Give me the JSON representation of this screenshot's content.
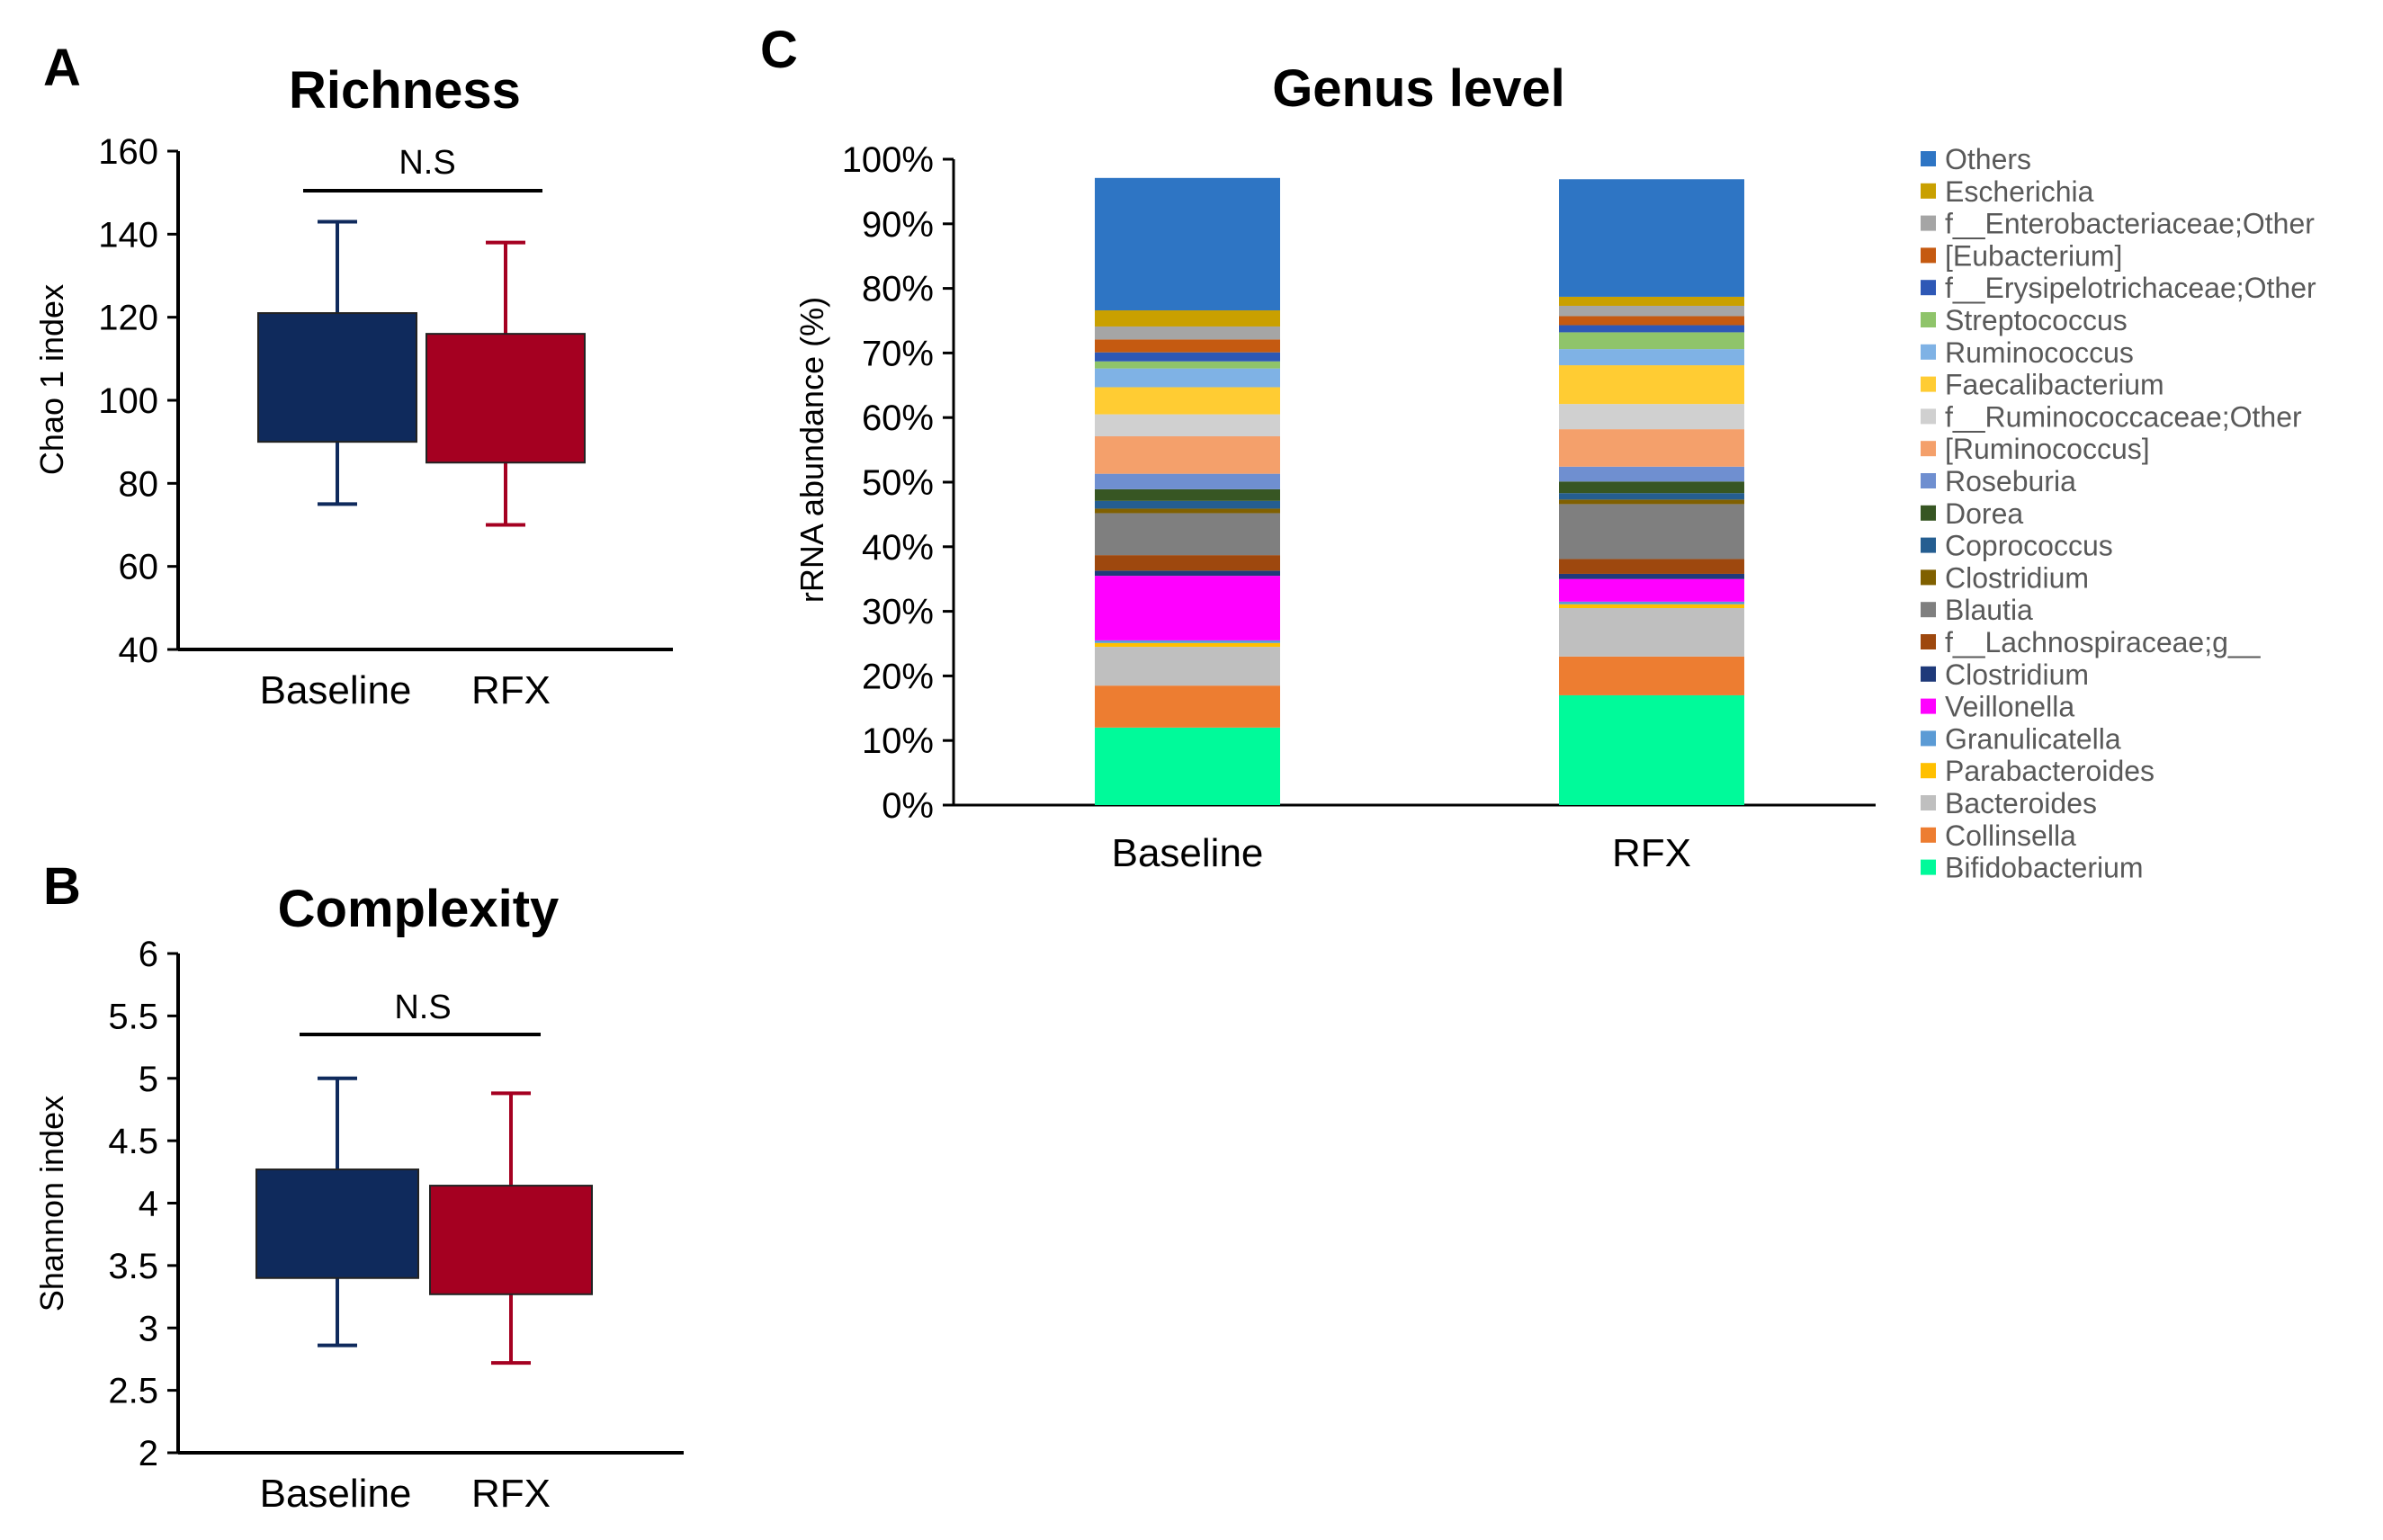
{
  "panels": {
    "A": {
      "letter": "A",
      "title": "Richness",
      "ylabel": "Chao 1 index",
      "significance": "N.S",
      "color": "#0f2a5c"
    },
    "B": {
      "letter": "B",
      "title": "Complexity",
      "ylabel": "Shannon index",
      "significance": "N.S"
    },
    "C": {
      "letter": "C",
      "title": "Genus level",
      "ylabel": "rRNA abundance (%)"
    }
  },
  "chart_data": [
    {
      "panel": "A",
      "type": "bar",
      "title": "Richness",
      "xlabel": "",
      "ylabel": "Chao 1 index",
      "categories": [
        "Baseline",
        "RFX"
      ],
      "box_bottom": [
        90,
        85
      ],
      "box_top": [
        121,
        116
      ],
      "whisker_low": [
        75,
        70
      ],
      "whisker_high": [
        143,
        138
      ],
      "colors": [
        "#0f2a5c",
        "#a50021"
      ],
      "ylim": [
        40,
        160
      ],
      "yticks": [
        40,
        60,
        80,
        100,
        120,
        140,
        160
      ],
      "annotation": "N.S",
      "grid": false
    },
    {
      "panel": "B",
      "type": "bar",
      "title": "Complexity",
      "xlabel": "",
      "ylabel": "Shannon index",
      "categories": [
        "Baseline",
        "RFX"
      ],
      "box_bottom": [
        3.4,
        3.27
      ],
      "box_top": [
        4.27,
        4.14
      ],
      "whisker_low": [
        2.86,
        2.72
      ],
      "whisker_high": [
        5.0,
        4.88
      ],
      "colors": [
        "#0f2a5c",
        "#a50021"
      ],
      "ylim": [
        2,
        6
      ],
      "yticks": [
        "2",
        "2.5",
        "3",
        "3.5",
        "4",
        "4.5",
        "5",
        "5.5",
        "6"
      ],
      "annotation": "N.S",
      "grid": false
    },
    {
      "panel": "C",
      "type": "bar",
      "stacked": true,
      "title": "Genus level",
      "xlabel": "",
      "ylabel": "rRNA abundance (%)",
      "categories": [
        "Baseline",
        "RFX"
      ],
      "ylim": [
        0,
        100
      ],
      "yticks": [
        "0%",
        "10%",
        "20%",
        "30%",
        "40%",
        "50%",
        "60%",
        "70%",
        "80%",
        "90%",
        "100%"
      ],
      "legend_position": "right",
      "grid": false,
      "series": [
        {
          "name": "Bifidobacterium",
          "color": "#00fa9a",
          "values": [
            12.0,
            17.0
          ]
        },
        {
          "name": "Collinsella",
          "color": "#ed7d31",
          "values": [
            6.5,
            6.0
          ]
        },
        {
          "name": "Bacteroides",
          "color": "#bfbfbf",
          "values": [
            6.0,
            7.5
          ]
        },
        {
          "name": "Parabacteroides",
          "color": "#ffc000",
          "values": [
            0.6,
            0.6
          ]
        },
        {
          "name": "Granulicatella",
          "color": "#5b9bd5",
          "values": [
            0.4,
            0.4
          ]
        },
        {
          "name": "Veillonella",
          "color": "#ff00ff",
          "values": [
            10.0,
            3.5
          ]
        },
        {
          "name": "Clostridium",
          "color": "#1f3a7a",
          "values": [
            0.8,
            0.8
          ]
        },
        {
          "name": "f__Lachnospiraceae;g__",
          "color": "#9e480e",
          "values": [
            2.4,
            2.3
          ]
        },
        {
          "name": "Blautia",
          "color": "#7f7f7f",
          "values": [
            6.5,
            8.5
          ]
        },
        {
          "name": "Clostridium",
          "color": "#806000",
          "values": [
            0.7,
            0.7
          ]
        },
        {
          "name": "Coprococcus",
          "color": "#255e91",
          "values": [
            1.2,
            1.0
          ]
        },
        {
          "name": "Dorea",
          "color": "#375623",
          "values": [
            1.8,
            1.8
          ]
        },
        {
          "name": "Roseburia",
          "color": "#6f8fd0",
          "values": [
            2.4,
            2.3
          ]
        },
        {
          "name": "[Ruminococcus]",
          "color": "#f4a06b",
          "values": [
            5.8,
            5.8
          ]
        },
        {
          "name": "f__Ruminococcaceae;Other",
          "color": "#d0d0d0",
          "values": [
            3.4,
            3.9
          ]
        },
        {
          "name": "Faecalibacterium",
          "color": "#ffcc33",
          "values": [
            4.2,
            6.0
          ]
        },
        {
          "name": "Ruminococcus",
          "color": "#7fb2e5",
          "values": [
            2.9,
            2.5
          ]
        },
        {
          "name": "Streptococcus",
          "color": "#8fc46a",
          "values": [
            1.1,
            2.6
          ]
        },
        {
          "name": "f__Erysipelotrichaceae;Other",
          "color": "#2e58b6",
          "values": [
            1.4,
            1.1
          ]
        },
        {
          "name": "[Eubacterium]",
          "color": "#c55a11",
          "values": [
            2.0,
            1.4
          ]
        },
        {
          "name": "f__Enterobacteriaceae;Other",
          "color": "#a5a5a5",
          "values": [
            2.0,
            1.6
          ]
        },
        {
          "name": "Escherichia",
          "color": "#c9a000",
          "values": [
            2.5,
            1.4
          ]
        },
        {
          "name": "Others",
          "color": "#2e75c4",
          "values": [
            20.5,
            18.2
          ]
        }
      ]
    }
  ]
}
